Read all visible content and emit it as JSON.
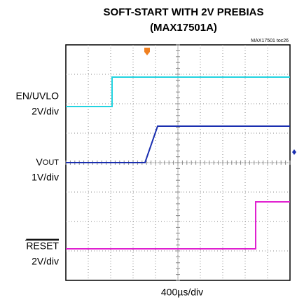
{
  "figure": {
    "title": [
      "SOFT-START WITH 2V PREBIAS",
      "(MAX17501A)"
    ],
    "figure_id": "MAX17501 toc26",
    "channels": [
      {
        "name": "EN/UVLO",
        "scale": "2V/div",
        "color": "#22d3e0"
      },
      {
        "name_main": "V",
        "name_sub": "OUT",
        "scale": "1V/div",
        "color": "#1a2fb0"
      },
      {
        "name": "RESET",
        "scale": "2V/div",
        "color": "#e020d0"
      }
    ],
    "timebase": "400µs/div"
  }
}
